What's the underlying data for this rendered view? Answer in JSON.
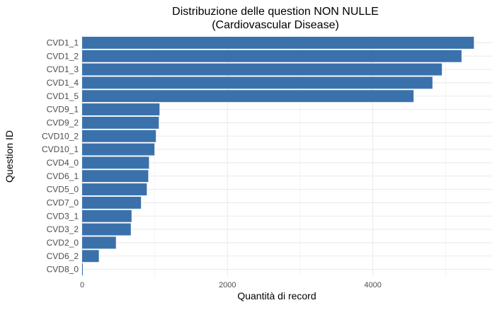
{
  "chart_data": {
    "type": "bar",
    "orientation": "horizontal",
    "title": "Distribuzione delle question NON NULLE",
    "subtitle": "(Cardiovascular Disease)",
    "xlabel": "Quantità di record",
    "ylabel": "Question ID",
    "categories": [
      "CVD1_1",
      "CVD1_2",
      "CVD1_3",
      "CVD1_4",
      "CVD1_5",
      "CVD9_1",
      "CVD9_2",
      "CVD10_2",
      "CVD10_1",
      "CVD4_0",
      "CVD6_1",
      "CVD5_0",
      "CVD7_0",
      "CVD3_1",
      "CVD3_2",
      "CVD2_0",
      "CVD6_2",
      "CVD8_0"
    ],
    "values": [
      5390,
      5220,
      4950,
      4820,
      4560,
      1065,
      1055,
      1015,
      995,
      920,
      910,
      890,
      810,
      680,
      670,
      465,
      230,
      8
    ],
    "x_ticks": [
      0,
      2000,
      4000
    ],
    "x_tick_labels": [
      "0",
      "2000",
      "4000"
    ],
    "xlim": [
      0,
      5640
    ],
    "grid": true,
    "bar_color": "#3a71ab",
    "grid_color": "#ebebeb",
    "background": "#ffffff"
  }
}
